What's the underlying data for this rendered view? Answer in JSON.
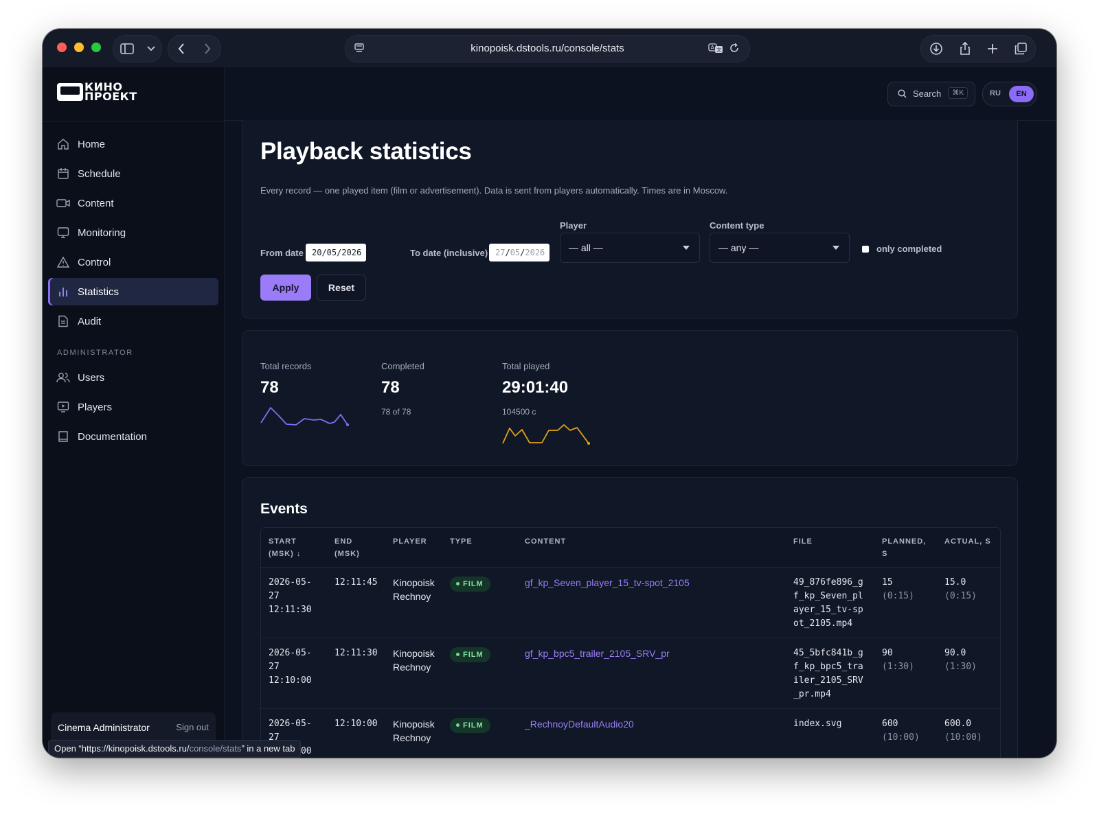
{
  "browser": {
    "url": "kinopoisk.dstools.ru/console/stats"
  },
  "sidebar": {
    "logo_line1": "КИНО",
    "logo_line2": "ПРОЕКТ",
    "items": [
      {
        "label": "Home",
        "icon": "home-icon"
      },
      {
        "label": "Schedule",
        "icon": "calendar-icon"
      },
      {
        "label": "Content",
        "icon": "video-icon"
      },
      {
        "label": "Monitoring",
        "icon": "monitor-icon"
      },
      {
        "label": "Control",
        "icon": "warning-icon"
      },
      {
        "label": "Statistics",
        "icon": "bar-chart-icon",
        "active": true
      },
      {
        "label": "Audit",
        "icon": "document-icon"
      }
    ],
    "admin_section": "ADMINISTRATOR",
    "admin_items": [
      {
        "label": "Users",
        "icon": "users-icon"
      },
      {
        "label": "Players",
        "icon": "player-icon"
      },
      {
        "label": "Documentation",
        "icon": "book-icon"
      }
    ],
    "user_name": "Cinema Administrator",
    "sign_out": "Sign out"
  },
  "link_tooltip": {
    "prefix": "Open “",
    "url_main": "https://kinopoisk.dstools.ru/",
    "url_path": "console/stats",
    "suffix": "” in a new tab"
  },
  "topbar": {
    "search_label": "Search",
    "search_shortcut": "⌘K",
    "lang_ru": "RU",
    "lang_en": "EN"
  },
  "page": {
    "title": "Playback statistics",
    "description": "Every record — one played item (film or advertisement). Data is sent from players automatically. Times are in Moscow."
  },
  "filters": {
    "from_label": "From date",
    "from_value": "20/05/2026",
    "to_label": "To date (inclusive)",
    "to_day": "27",
    "to_month": "05",
    "to_year": "2026",
    "player_label": "Player",
    "player_value": "— all —",
    "type_label": "Content type",
    "type_value": "— any —",
    "only_completed": "only completed",
    "apply": "Apply",
    "reset": "Reset"
  },
  "stats": {
    "total_label": "Total records",
    "total_value": "78",
    "completed_label": "Completed",
    "completed_value": "78",
    "completed_sub": "78 of 78",
    "played_label": "Total played",
    "played_value": "29:01:40",
    "played_sub": "104500 с",
    "colors": {
      "records_line": "#7c6ef2",
      "played_line": "#e0a21a"
    }
  },
  "events": {
    "title": "Events",
    "columns": [
      "START (MSK) ↓",
      "END (MSK)",
      "PLAYER",
      "TYPE",
      "CONTENT",
      "FILE",
      "PLANNED, S",
      "ACTUAL, S"
    ],
    "rows": [
      {
        "start": "2026-05-27 12:11:30",
        "end": "12:11:45",
        "player": "Kinopoisk Rechnoy",
        "type": "FILM",
        "content": "gf_kp_Seven_player_15_tv-spot_2105",
        "file": "49_876fe896_gf_kp_Seven_player_15_tv-spot_2105.mp4",
        "planned": "15",
        "planned_hms": "(0:15)",
        "actual": "15.0",
        "actual_hms": "(0:15)"
      },
      {
        "start": "2026-05-27 12:10:00",
        "end": "12:11:30",
        "player": "Kinopoisk Rechnoy",
        "type": "FILM",
        "content": "gf_kp_bpc5_trailer_2105_SRV_pr",
        "file": "45_5bfc841b_gf_kp_bpc5_trailer_2105_SRV_pr.mp4",
        "planned": "90",
        "planned_hms": "(1:30)",
        "actual": "90.0",
        "actual_hms": "(1:30)"
      },
      {
        "start": "2026-05-27 12:00:00",
        "end": "12:10:00",
        "player": "Kinopoisk Rechnoy",
        "type": "FILM",
        "content": "_RechnoyDefaultAudio20",
        "file": "index.svg",
        "planned": "600",
        "planned_hms": "(10:00)",
        "actual": "600.0",
        "actual_hms": "(10:00)"
      }
    ]
  }
}
